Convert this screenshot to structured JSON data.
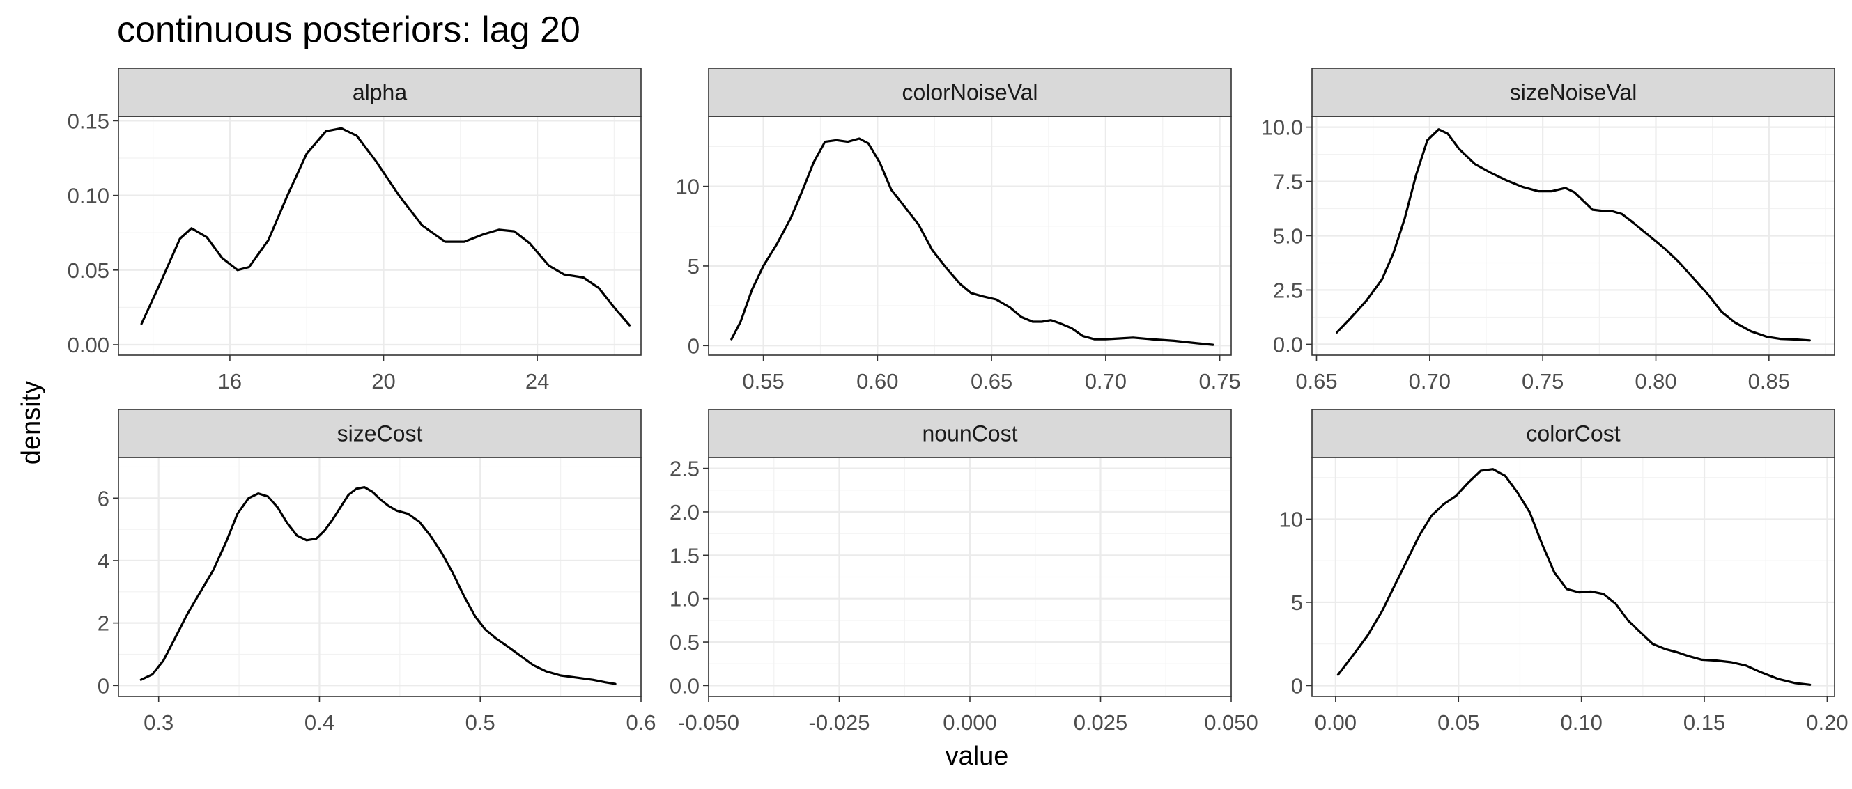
{
  "title": "continuous posteriors: lag 20",
  "xlabel": "value",
  "ylabel": "density",
  "chart_data": [
    {
      "type": "line",
      "facet": "alpha",
      "xlim": [
        13.1,
        26.7
      ],
      "ylim": [
        -0.007,
        0.153
      ],
      "xticks": [
        16,
        20,
        24
      ],
      "xtick_labels": [
        "16",
        "20",
        "24"
      ],
      "yticks": [
        0.0,
        0.05,
        0.1,
        0.15
      ],
      "ytick_labels": [
        "0.00",
        "0.05",
        "0.10",
        "0.15"
      ],
      "grid": true,
      "series": [
        {
          "x": [
            13.7,
            14.2,
            14.7,
            15.0,
            15.4,
            15.8,
            16.2,
            16.5,
            17.0,
            17.5,
            18.0,
            18.5,
            18.9,
            19.3,
            19.8,
            20.4,
            21.0,
            21.6,
            22.1,
            22.6,
            23.0,
            23.4,
            23.8,
            24.3,
            24.7,
            25.2,
            25.6,
            26.0,
            26.4
          ],
          "y": [
            0.014,
            0.042,
            0.071,
            0.078,
            0.072,
            0.058,
            0.05,
            0.052,
            0.07,
            0.1,
            0.128,
            0.143,
            0.145,
            0.14,
            0.123,
            0.1,
            0.08,
            0.069,
            0.069,
            0.074,
            0.077,
            0.076,
            0.068,
            0.053,
            0.047,
            0.045,
            0.038,
            0.025,
            0.013
          ]
        }
      ]
    },
    {
      "type": "line",
      "facet": "colorNoiseVal",
      "xlim": [
        0.526,
        0.755
      ],
      "ylim": [
        -0.6,
        14.4
      ],
      "xticks": [
        0.55,
        0.6,
        0.65,
        0.7,
        0.75
      ],
      "xtick_labels": [
        "0.55",
        "0.60",
        "0.65",
        "0.70",
        "0.75"
      ],
      "yticks": [
        0,
        5,
        10
      ],
      "ytick_labels": [
        "0",
        "5",
        "10"
      ],
      "grid": true,
      "series": [
        {
          "x": [
            0.536,
            0.54,
            0.545,
            0.55,
            0.556,
            0.562,
            0.567,
            0.572,
            0.577,
            0.582,
            0.587,
            0.592,
            0.596,
            0.601,
            0.606,
            0.612,
            0.618,
            0.624,
            0.63,
            0.636,
            0.641,
            0.646,
            0.652,
            0.658,
            0.663,
            0.668,
            0.672,
            0.676,
            0.68,
            0.685,
            0.69,
            0.695,
            0.7,
            0.706,
            0.712,
            0.72,
            0.73,
            0.74,
            0.747
          ],
          "y": [
            0.4,
            1.5,
            3.5,
            5.0,
            6.4,
            8.0,
            9.7,
            11.5,
            12.8,
            12.9,
            12.8,
            13.0,
            12.7,
            11.5,
            9.8,
            8.7,
            7.6,
            6.0,
            4.9,
            3.9,
            3.3,
            3.1,
            2.9,
            2.4,
            1.8,
            1.5,
            1.5,
            1.6,
            1.4,
            1.1,
            0.6,
            0.4,
            0.4,
            0.45,
            0.5,
            0.4,
            0.3,
            0.15,
            0.05
          ]
        }
      ]
    },
    {
      "type": "line",
      "facet": "sizeNoiseVal",
      "xlim": [
        0.648,
        0.879
      ],
      "ylim": [
        -0.5,
        10.5
      ],
      "xticks": [
        0.65,
        0.7,
        0.75,
        0.8,
        0.85
      ],
      "xtick_labels": [
        "0.65",
        "0.70",
        "0.75",
        "0.80",
        "0.85"
      ],
      "yticks": [
        0.0,
        2.5,
        5.0,
        7.5,
        10.0
      ],
      "ytick_labels": [
        "0.0",
        "2.5",
        "5.0",
        "7.5",
        "10.0"
      ],
      "grid": true,
      "series": [
        {
          "x": [
            0.659,
            0.665,
            0.672,
            0.679,
            0.684,
            0.689,
            0.694,
            0.699,
            0.704,
            0.708,
            0.713,
            0.72,
            0.727,
            0.734,
            0.741,
            0.748,
            0.754,
            0.76,
            0.764,
            0.768,
            0.772,
            0.776,
            0.78,
            0.785,
            0.79,
            0.797,
            0.804,
            0.81,
            0.817,
            0.823,
            0.829,
            0.835,
            0.842,
            0.849,
            0.855,
            0.862,
            0.868
          ],
          "y": [
            0.55,
            1.2,
            2.0,
            3.0,
            4.2,
            5.8,
            7.8,
            9.4,
            9.9,
            9.7,
            9.0,
            8.3,
            7.9,
            7.55,
            7.25,
            7.05,
            7.05,
            7.2,
            7.0,
            6.6,
            6.2,
            6.15,
            6.15,
            6.0,
            5.6,
            5.0,
            4.4,
            3.8,
            3.0,
            2.3,
            1.5,
            1.0,
            0.6,
            0.35,
            0.25,
            0.22,
            0.18
          ]
        }
      ]
    },
    {
      "type": "line",
      "facet": "sizeCost",
      "xlim": [
        0.275,
        0.6
      ],
      "ylim": [
        -0.35,
        7.3
      ],
      "xticks": [
        0.3,
        0.4,
        0.5,
        0.6
      ],
      "xtick_labels": [
        "0.3",
        "0.4",
        "0.5",
        "0.6"
      ],
      "yticks": [
        0,
        2,
        4,
        6
      ],
      "ytick_labels": [
        "0",
        "2",
        "4",
        "6"
      ],
      "grid": true,
      "series": [
        {
          "x": [
            0.289,
            0.296,
            0.303,
            0.31,
            0.318,
            0.326,
            0.334,
            0.342,
            0.349,
            0.356,
            0.362,
            0.368,
            0.374,
            0.38,
            0.386,
            0.392,
            0.398,
            0.403,
            0.408,
            0.413,
            0.418,
            0.423,
            0.428,
            0.433,
            0.438,
            0.443,
            0.448,
            0.455,
            0.462,
            0.469,
            0.476,
            0.483,
            0.49,
            0.497,
            0.503,
            0.51,
            0.517,
            0.525,
            0.533,
            0.541,
            0.55,
            0.56,
            0.57,
            0.578,
            0.584
          ],
          "y": [
            0.18,
            0.35,
            0.8,
            1.5,
            2.3,
            3.0,
            3.7,
            4.6,
            5.5,
            6.0,
            6.15,
            6.05,
            5.7,
            5.2,
            4.8,
            4.65,
            4.7,
            4.95,
            5.3,
            5.7,
            6.1,
            6.3,
            6.35,
            6.2,
            5.95,
            5.75,
            5.6,
            5.5,
            5.25,
            4.8,
            4.25,
            3.6,
            2.85,
            2.2,
            1.8,
            1.5,
            1.25,
            0.95,
            0.65,
            0.45,
            0.32,
            0.25,
            0.18,
            0.1,
            0.05
          ]
        }
      ]
    },
    {
      "type": "line",
      "facet": "nounCost",
      "xlim": [
        -0.05,
        0.05
      ],
      "ylim": [
        -0.125,
        2.625
      ],
      "xticks": [
        -0.05,
        -0.025,
        0.0,
        0.025,
        0.05
      ],
      "xtick_labels": [
        "-0.050",
        "-0.025",
        "0.000",
        "0.025",
        "0.050"
      ],
      "yticks": [
        0.0,
        0.5,
        1.0,
        1.5,
        2.0,
        2.5
      ],
      "ytick_labels": [
        "0.0",
        "0.5",
        "1.0",
        "1.5",
        "2.0",
        "2.5"
      ],
      "grid": true,
      "series": []
    },
    {
      "type": "line",
      "facet": "colorCost",
      "xlim": [
        -0.0096,
        0.203
      ],
      "ylim": [
        -0.65,
        13.7
      ],
      "xticks": [
        0.0,
        0.05,
        0.1,
        0.15,
        0.2
      ],
      "xtick_labels": [
        "0.00",
        "0.05",
        "0.10",
        "0.15",
        "0.20"
      ],
      "yticks": [
        0,
        5,
        10
      ],
      "ytick_labels": [
        "0",
        "5",
        "10"
      ],
      "grid": true,
      "series": [
        {
          "x": [
            0.001,
            0.007,
            0.013,
            0.019,
            0.024,
            0.029,
            0.034,
            0.039,
            0.044,
            0.049,
            0.054,
            0.059,
            0.064,
            0.069,
            0.074,
            0.079,
            0.084,
            0.089,
            0.094,
            0.099,
            0.104,
            0.109,
            0.114,
            0.119,
            0.124,
            0.129,
            0.134,
            0.139,
            0.144,
            0.149,
            0.155,
            0.161,
            0.167,
            0.173,
            0.18,
            0.187,
            0.193
          ],
          "y": [
            0.65,
            1.8,
            3.0,
            4.5,
            6.0,
            7.5,
            9.0,
            10.2,
            10.9,
            11.4,
            12.2,
            12.9,
            13.0,
            12.6,
            11.6,
            10.4,
            8.5,
            6.8,
            5.8,
            5.6,
            5.65,
            5.5,
            4.9,
            3.9,
            3.2,
            2.5,
            2.2,
            2.0,
            1.75,
            1.55,
            1.5,
            1.4,
            1.2,
            0.8,
            0.4,
            0.15,
            0.05
          ]
        }
      ]
    }
  ]
}
